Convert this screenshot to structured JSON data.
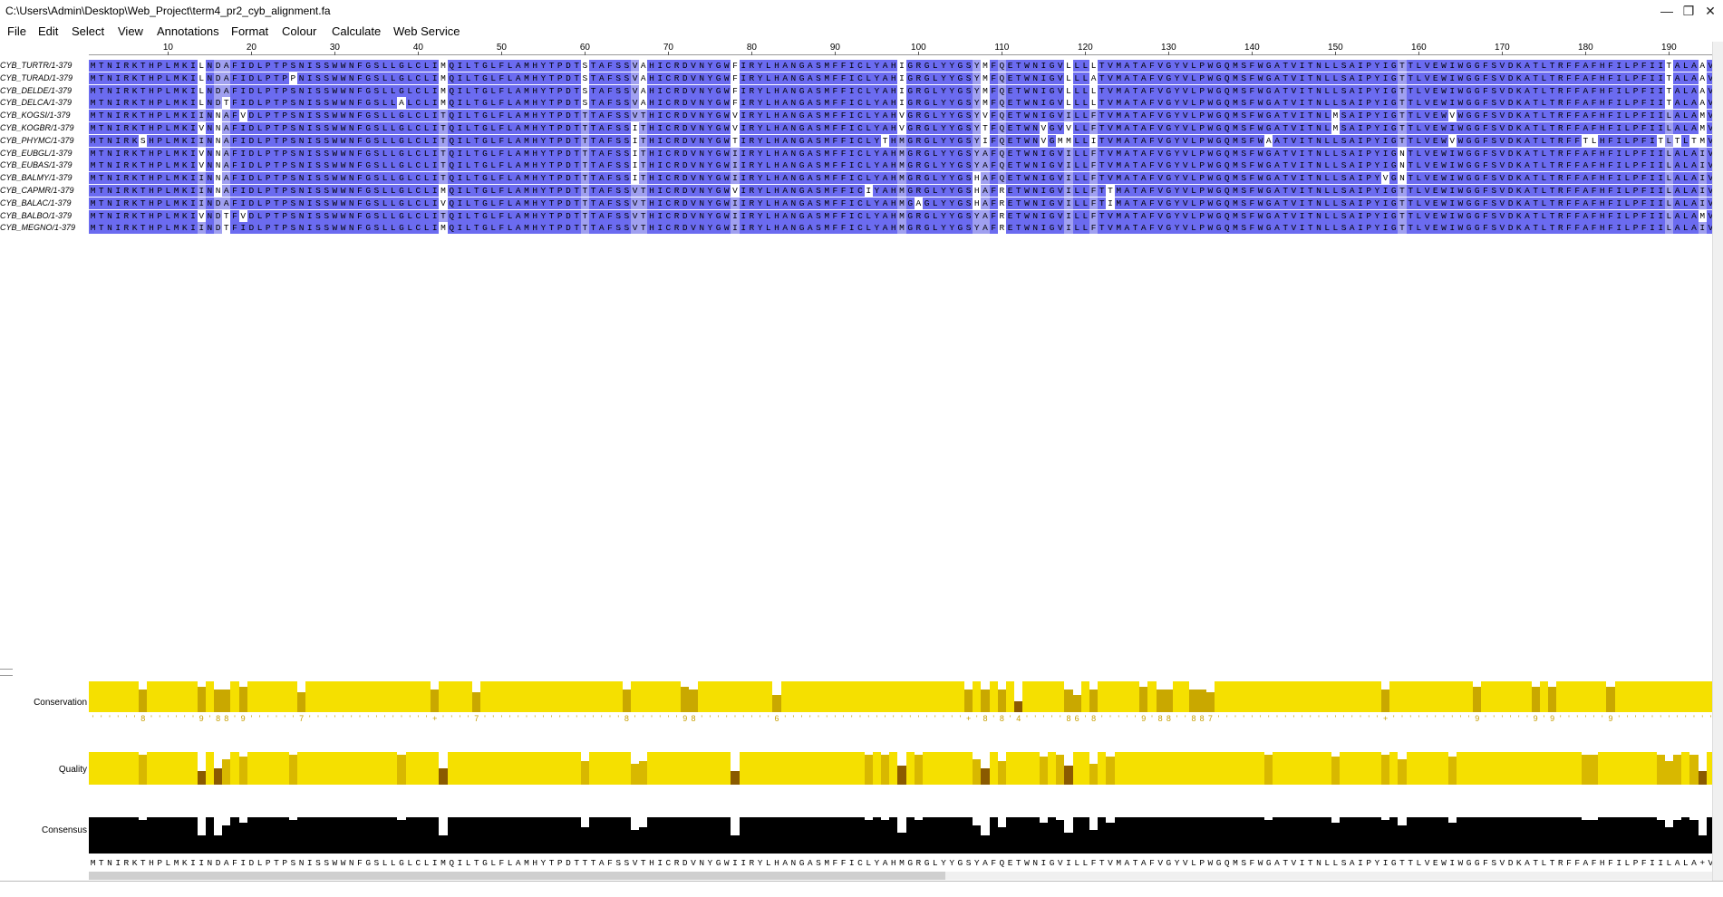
{
  "window": {
    "title": "C:\\Users\\Admin\\Desktop\\Web_Project\\term4_pr2_cyb_alignment.fa",
    "minimize": "—",
    "restore": "❐",
    "close": "✕"
  },
  "menu": [
    "File",
    "Edit",
    "Select",
    "View",
    "Annotations",
    "Format",
    "Colour",
    "Calculate",
    "Web Service"
  ],
  "ruler": {
    "labels": [
      "10",
      "20",
      "30",
      "40",
      "50",
      "60",
      "70",
      "80",
      "90",
      "100",
      "110",
      "120",
      "130",
      "140",
      "150",
      "160",
      "170",
      "180",
      "190"
    ]
  },
  "colors": {
    "identity": "#6b6bf0",
    "light": "#a0a0f0",
    "white": "#ffffff",
    "conservation": "#f5e000",
    "conservation_dark": "#8a5a00",
    "consensus": "#000000"
  },
  "sequences": [
    {
      "name": "CYB_TURTR/1-379",
      "seq": "MTNIRKTHPLMKILNDAFIDLPTPSNISSWWNFGSLLGLCLIMQILTGLFLAMHYTPDTSTAFSSVAHICRDVNYGWFIRYLHANGASMFFICLYAHIGRGLYYGSYMFQETWNIGVLLLLTVMATAFVGYVLPWGQMSFWGATVITNLLSAIPYIGTTLVEWIWGGFSVDKATLTRFFAFHFILPFIITALAAVHLLF"
    },
    {
      "name": "CYB_TURAD/1-379",
      "seq": "MTNIRKTHPLMKILNDAFIDLPTPPNISSWWNFGSLLGLCLIMQILTGLFLAMHYTPDTSTAFSSVAHICRDVNYGWFIRYLHANGASMFFICLYAHIGRGLYYGSYMFQETWNIGVLLLATVMATAFVGYVLPWGQMSFWGATVITNLLSAIPYIGTTLVEWIWGGFSVDKATLTRFFAFHFILPFIITALAAVHLLF"
    },
    {
      "name": "CYB_DELDE/1-379",
      "seq": "MTNIRKTHPLMKILNDAFIDLPTPSNISSWWNFGSLLGLCLIMQILTGLFLAMHYTPDTSTAFSSVAHICRDVNYGWFIRYLHANGASMFFICLYAHIGRGLYYGSYMFQETWNIGVLLLLTVMATAFVGYVLPWGQMSFWGATVITNLLSAIPYIGTTLVEWIWGGFSVDKATLTRFFAFHFILPFIITALAAVHLLF"
    },
    {
      "name": "CYB_DELCA/1-379",
      "seq": "MTNIRKTHPLMKILNDTFIDLPTPSNISSWWNFGSLLALCLIMQILTGLFLAMHYTPDTSTAFSSVAHICRDVNYGWFIRYLHANGASMFFICLYAHIGRGLYYGSYMFQETWNIGVLLLLTVMATAFVGYVLPWGQMSFWGATVITNLLSAIPYIGTTLVEWIWGGFSVDKATLTRFFAFHFILPFIITALAAVHLLF"
    },
    {
      "name": "CYB_KOGSI/1-379",
      "seq": "MTNIRKTHPLMKIINNAFVDLPTPSNISSWWNFGSLLGLCLITQILTGLFLAMHYTPDTTTAFSSVTHICRDVNYGWVIRYLHANGASMFFICLYAHVGRGLYYGSYVFQETWNIGVILLFTVMATAFVGYVLPWGQMSFWGATVITNLMSAIPYIGTTLVEWVWGGFSVDKATLTRFFAFHFILPFIILALAMVHLLF"
    },
    {
      "name": "CYB_KOGBR/1-379",
      "seq": "MTNIRKTHPLMKIVNNAFIDLPTPSNISSWWNFGSLLGLCLITQILTGLFLAMHYTPDTTTAFSSITHICRDVNYGWVIRYLHANGASMFFICLYAHVGRGLYYGSYTFQETWNVGVVLLFTVMATAFVGYVLPWGQMSFWGATVITNLMSAIPYIGTTLVEWIWGGFSVDKATLTRFFAFHFILPFIILALAMVHLLF"
    },
    {
      "name": "CYB_PHYMC/1-379",
      "seq": "MTNIRKSHPLMKIINNAFIDLPTPSNISSWWNFGSLLGLCLITQILTGLFLAMHYTPDTTTAFSSITHICRDVNYGWTIRYLHANGASMFFICLYTHMGRGLYYGSYIFQETWNVGMMLLITVMATAFVGYVLPWGQMSFWAATVITNLLSAIPYIGTTLVEWVWGGFSVDKATLTRFFTLHFILPFITLTLTMVHLLF"
    },
    {
      "name": "CYB_EUBGL/1-379",
      "seq": "MTNIRKTHPLMKIVNNAFIDLPTPSNISSWWNFGSLLGLCLITQILTGLFLAMHYTPDTTTAFSSITHICRDVNYGWIIRYLHANGASMFFICLYAHMGRGLYYGSYAFQETWNIGVILLFTVMATAFVGYVLPWGQMSFWGATVITNLLSAIPYIGNTLVEWIWGGFSVDKATLTRFFAFHFILPFIILALAIVHLLF"
    },
    {
      "name": "CYB_EUBAS/1-379",
      "seq": "MTNIRKTHPLMKIVNNAFIDLPTPSNISSWWNFGSLLGLCLITQILTGLFLAMHYTPDTTTAFSSITHICRDVNYGWIIRYLHANGASMFFICLYAHMGRGLYYGSYAFQETWNIGVILLFTVMATAFVGYVLPWGQMSFWGATVITNLLSAIPYIGNTLVEWIWGGFSVDKATLTRFFAFHFILPFIILALAIVHLLF"
    },
    {
      "name": "CYB_BALMY/1-379",
      "seq": "MTNIRKTHPLMKIINNAFIDLPTPSNISSWWNFGSLLGLCLITQILTGLFLAMHYTPDTTTAFSSITHICRDVNYGWIIRYLHANGASMFFICLYAHMGRGLYYGSHAFQETWNIGVILLFTVMATAFVGYVLPWGQMSFWGATVITNLLSAIPYVGNTLVEWIWGGFSVDKATLTRFFAFHFILPFIILALAIVHLLF"
    },
    {
      "name": "CYB_CAPMR/1-379",
      "seq": "MTNIRKTHPLMKIINNAFIDLPTPSNISSWWNFGSLLGLCLIMQILTGLFLAMHYTPDTTTAFSSVTHICRDVNYGWVIRYLHANGASMFFICIYAHMGRGLYYGSHAFRETWNIGVILLFTTMATAFVGYVLPWGQMSFWGATVITNLLSAIPYIGTTLVEWIWGGFSVDKATLTRFFAFHFILPFIILALAIVHLLF"
    },
    {
      "name": "CYB_BALAC/1-379",
      "seq": "MTNIRKTHPLMKIINDAFIDLPTPSNISSWWNFGSLLGLCLIVQILTGLFLAMHYTPDTTTAFSSVTHICRDVNYGWIIRYLHANGASMFFICLYAHMGAGLYYGSHAFRETWNIGVILLFTIMATAFVGYVLPWGQMSFWGATVITNLLSAIPYIGTTLVEWIWGGFSVDKATLTRFFAFHFILPFIILALAIVHLIF"
    },
    {
      "name": "CYB_BALBO/1-379",
      "seq": "MTNIRKTHPLMKIVNDTFVDLPTPSNISSWWNFGSLLGLCLITQILTGLFLAMHYTPDTTTAFSSVTHICRDVNYGWIIRYLHANGASMFFICLYAHMGRGLYYGSYAFRETWNIGVILLFTVMATAFVGYVLPWGQMSFWGATVITNLLSAIPYIGTTLVEWIWGGFSVDKATLTRFFAFHFILPFIILALAMVHLIF"
    },
    {
      "name": "CYB_MEGNO/1-379",
      "seq": "MTNIRKTHPLMKIINDTFIDLPTPSNISSWWNFGSLLGLCLIMQILTGLFLAMHYTPDTTTAFSSVTHICRDVNYGWIIRYLHANGASMFFICLYAHMGRGLYYGSYAFRETWNIGVILLFTVMATAFVGYVLPWGQMSFWGATVITNLLSAIPYIGTTLVEWIWGGFSVDKATLTRFFAFHFILPFIILALAIVHLIF"
    }
  ],
  "annotations": {
    "conservation_label": "Conservation",
    "quality_label": "Quality",
    "consensus_label": "Consensus",
    "conservation_digits": "''''''8''''''9'88'9''''''7'''''''''''''''+''''7'''''''''''''''''8''''''98'''''''''6''''''''''''''''''''''+'8'8'4'''''86'8'''''9'88''887''''''''''''''''''''+''''''''''9''''''9'9''''''9'''''''''''''''''''''''88'''''''''778'87''''+'",
    "consensus_seq": "MTNIRKTHPLMKIINDAFIDLPTPSNISSWWNFGSLLGLCLIMQILTGLFLAMHYTPDTTTAFSSVTHICRDVNYGWIIRYLHANGASMFFICLYAHMGRGLYYGSYAFQETWNIGVILLFTVMATAFVGYVLPWGQMSFWGATVITNLLSAIPYIGTTLVEWIWGGFSVDKATLTRFFAFHFILPFIILALA+VHLLF"
  }
}
